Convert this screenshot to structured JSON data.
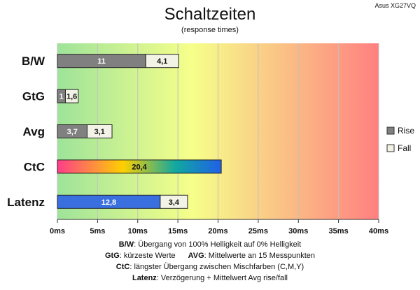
{
  "chart_data": {
    "type": "bar",
    "orientation": "horizontal",
    "stacked": true,
    "title": "Schaltzeiten",
    "subtitle": "(response times)",
    "model": "Asus XG27VQ",
    "categories": [
      "B/W",
      "GtG",
      "Avg",
      "CtC",
      "Latenz"
    ],
    "xlim": [
      0,
      40
    ],
    "xticks": [
      0,
      5,
      10,
      15,
      20,
      25,
      30,
      35,
      40
    ],
    "xtick_labels": [
      "0ms",
      "5ms",
      "10ms",
      "15ms",
      "20ms",
      "25ms",
      "30ms",
      "35ms",
      "40ms"
    ],
    "series": [
      {
        "name": "Rise",
        "values": [
          11,
          1,
          3.7,
          20.4,
          12.8
        ],
        "labels": [
          "11",
          "1",
          "3,7",
          "20,4",
          "12,8"
        ]
      },
      {
        "name": "Fall",
        "values": [
          4.1,
          1.6,
          3.1,
          0,
          3.4
        ],
        "labels": [
          "4,1",
          "1,6",
          "3,1",
          "",
          "3,4"
        ]
      }
    ],
    "bar_colors": {
      "rise": "#808080",
      "fall": "#f2f2e6",
      "latenz": "#3a6fe0",
      "ctc_gradient": [
        "#ff3d8b",
        "#ffd000",
        "#11a8a0",
        "#2060e8"
      ]
    },
    "background_gradient": [
      "#9ee39a",
      "#f6ff8a",
      "#ff8080"
    ],
    "grid": true,
    "legend_position": "right"
  },
  "notes": [
    {
      "key": "B/W",
      "text": ": Übergang von 100% Helligkeit auf 0% Helligkeit"
    },
    {
      "key": "GtG",
      "text": ": kürzeste Werte",
      "key2": "AVG",
      "text2": ": Mittelwerte an 15 Messpunkten"
    },
    {
      "key": "CtC",
      "text": ": längster Übergang zwischen Mischfarben (C,M,Y)"
    },
    {
      "key": "Latenz",
      "text": ": Verzögerung + Mittelwert Avg rise/fall"
    }
  ]
}
